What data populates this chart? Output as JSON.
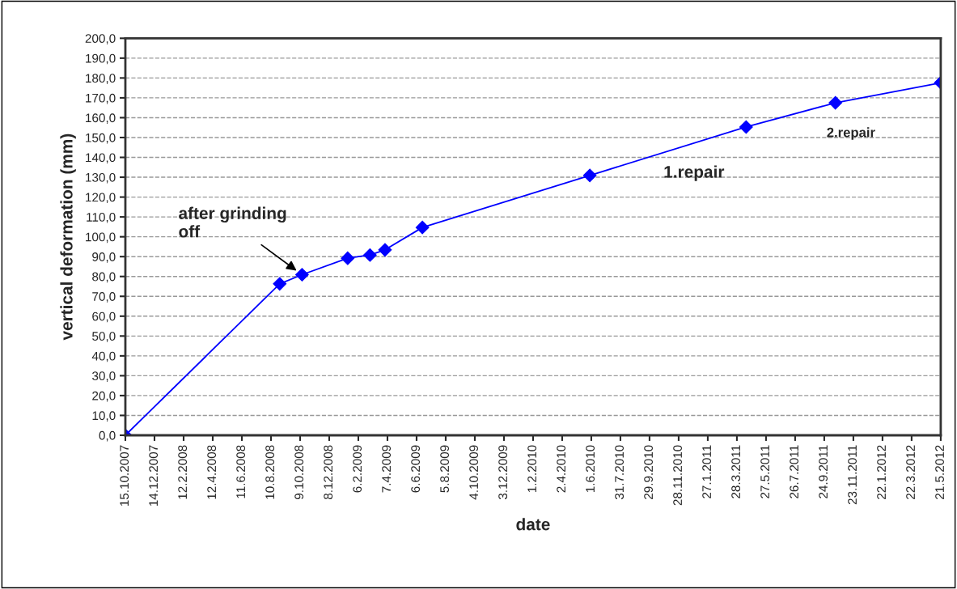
{
  "chart_data": {
    "type": "line",
    "xlabel": "date",
    "ylabel": "vertical deformation (mm)",
    "x": [
      "2007-10-15",
      "2008-08-28",
      "2008-10-13",
      "2009-01-15",
      "2009-03-02",
      "2009-04-02",
      "2009-06-18",
      "2010-05-29",
      "2011-04-16",
      "2011-10-17",
      "2012-05-21"
    ],
    "series": [
      {
        "color": "#0000ff",
        "values": [
          0,
          76.3,
          80.9,
          89.2,
          90.8,
          93.4,
          104.7,
          130.9,
          155.3,
          167.5,
          177.6
        ]
      }
    ],
    "marker": "diamond",
    "line_style": "solid",
    "grid": "y",
    "legend": false,
    "xlim": [
      "2007-10-15",
      "2012-05-21"
    ],
    "xticks": [
      {
        "value": "2007-10-15",
        "label": "15.10.2007"
      },
      {
        "value": "2007-12-14",
        "label": "14.12.2007"
      },
      {
        "value": "2008-02-12",
        "label": "12.2.2008"
      },
      {
        "value": "2008-04-12",
        "label": "12.4.2008"
      },
      {
        "value": "2008-06-11",
        "label": "11.6.2008"
      },
      {
        "value": "2008-08-10",
        "label": "10.8.2008"
      },
      {
        "value": "2008-10-09",
        "label": "9.10.2008"
      },
      {
        "value": "2008-12-08",
        "label": "8.12.2008"
      },
      {
        "value": "2009-02-06",
        "label": "6.2.2009"
      },
      {
        "value": "2009-04-07",
        "label": "7.4.2009"
      },
      {
        "value": "2009-06-06",
        "label": "6.6.2009"
      },
      {
        "value": "2009-08-05",
        "label": "5.8.2009"
      },
      {
        "value": "2009-10-04",
        "label": "4.10.2009"
      },
      {
        "value": "2009-12-03",
        "label": "3.12.2009"
      },
      {
        "value": "2010-02-01",
        "label": "1.2.2010"
      },
      {
        "value": "2010-04-02",
        "label": "2.4.2010"
      },
      {
        "value": "2010-06-01",
        "label": "1.6.2010"
      },
      {
        "value": "2010-07-31",
        "label": "31.7.2010"
      },
      {
        "value": "2010-09-29",
        "label": "29.9.2010"
      },
      {
        "value": "2010-11-28",
        "label": "28.11.2010"
      },
      {
        "value": "2011-01-27",
        "label": "27.1.2011"
      },
      {
        "value": "2011-03-28",
        "label": "28.3.2011"
      },
      {
        "value": "2011-05-27",
        "label": "27.5.2011"
      },
      {
        "value": "2011-07-26",
        "label": "26.7.2011"
      },
      {
        "value": "2011-09-24",
        "label": "24.9.2011"
      },
      {
        "value": "2011-11-23",
        "label": "23.11.2011"
      },
      {
        "value": "2012-01-22",
        "label": "22.1.2012"
      },
      {
        "value": "2012-03-22",
        "label": "22.3.2012"
      },
      {
        "value": "2012-05-21",
        "label": "21.5.2012"
      }
    ],
    "ylim": [
      0,
      200
    ],
    "yticks": [
      {
        "value": 0,
        "label": "0,0"
      },
      {
        "value": 10,
        "label": "10,0"
      },
      {
        "value": 20,
        "label": "20,0"
      },
      {
        "value": 30,
        "label": "30,0"
      },
      {
        "value": 40,
        "label": "40,0"
      },
      {
        "value": 50,
        "label": "50,0"
      },
      {
        "value": 60,
        "label": "60,0"
      },
      {
        "value": 70,
        "label": "70,0"
      },
      {
        "value": 80,
        "label": "80,0"
      },
      {
        "value": 90,
        "label": "90,0"
      },
      {
        "value": 100,
        "label": "100,0"
      },
      {
        "value": 110,
        "label": "110,0"
      },
      {
        "value": 120,
        "label": "120,0"
      },
      {
        "value": 130,
        "label": "130,0"
      },
      {
        "value": 140,
        "label": "140,0"
      },
      {
        "value": 150,
        "label": "150,0"
      },
      {
        "value": 160,
        "label": "160,0"
      },
      {
        "value": 170,
        "label": "170,0"
      },
      {
        "value": 180,
        "label": "180,0"
      },
      {
        "value": 190,
        "label": "190,0"
      },
      {
        "value": 200,
        "label": "200,0"
      }
    ],
    "annotations": [
      {
        "text": "after grinding\noff",
        "x": "2008-10-13",
        "y": 80.9
      },
      "1.repair",
      "2.repair"
    ]
  }
}
